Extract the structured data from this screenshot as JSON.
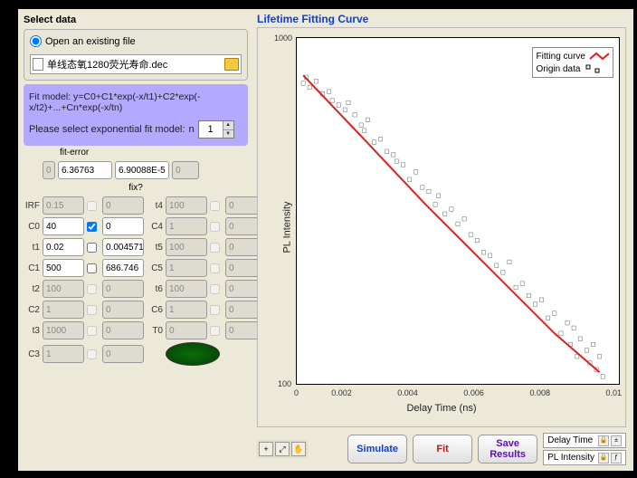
{
  "left": {
    "select_data_title": "Select data",
    "open_existing": "Open an existing file",
    "file_name": "单线态氧1280荧光寿命.dec",
    "model": {
      "formula": "Fit model: y=C0+C1*exp(-x/t1)+C2*exp(-x/t2)+...+Cn*exp(-x/tn)",
      "select_label": "Please select exponential fit model:",
      "n_label": "n",
      "n_value": "1"
    },
    "fit_error_label": "fit-error",
    "fix_label": "fix?",
    "error_row": {
      "f1": "0",
      "v1": "6.36763",
      "v2": "6.90088E-5",
      "f2": "0"
    },
    "params": {
      "IRF": {
        "v": "0.15",
        "r": "0",
        "lbl2": "t4",
        "v2": "100",
        "r2": "0"
      },
      "C0": {
        "v": "40",
        "r": "0",
        "lbl2": "C4",
        "v2": "1",
        "r2": "0",
        "enabled": true,
        "chk": true,
        "r_enabled": true
      },
      "t1": {
        "v": "0.02",
        "r": "0.0045712",
        "lbl2": "t5",
        "v2": "100",
        "r2": "0",
        "enabled": true,
        "r_enabled": true
      },
      "C1": {
        "v": "500",
        "r": "686.746",
        "lbl2": "C5",
        "v2": "1",
        "r2": "0",
        "enabled": true,
        "r_enabled": true
      },
      "t2": {
        "v": "100",
        "r": "0",
        "lbl2": "t6",
        "v2": "100",
        "r2": "0"
      },
      "C2": {
        "v": "1",
        "r": "0",
        "lbl2": "C6",
        "v2": "1",
        "r2": "0"
      },
      "t3": {
        "v": "1000",
        "r": "0",
        "lbl2": "T0",
        "v2": "0",
        "r2": "0"
      },
      "C3": {
        "v": "1",
        "r": "0"
      }
    }
  },
  "right": {
    "chart_title": "Lifetime Fitting Curve",
    "legend": {
      "fit": "Fitting curve",
      "origin": "Origin data"
    },
    "y_label": "PL Intensity",
    "x_label": "Delay Time (ns)",
    "y_ticks": {
      "top": "1000",
      "bottom": "100"
    },
    "x_ticks": [
      "0",
      "0.002",
      "0.004",
      "0.006",
      "0.008",
      "0.01"
    ],
    "chart": {
      "type": "line+scatter",
      "fit_line": {
        "color": "#e02020",
        "width": 2,
        "points": [
          [
            0.0002,
            780
          ],
          [
            0.002,
            520
          ],
          [
            0.004,
            330
          ],
          [
            0.006,
            215
          ],
          [
            0.008,
            140
          ],
          [
            0.0094,
            108
          ]
        ]
      },
      "scatter": {
        "color": "#000",
        "marker": "square-open",
        "size": 4,
        "points": [
          [
            0.0002,
            740
          ],
          [
            0.0003,
            770
          ],
          [
            0.0004,
            720
          ],
          [
            0.0006,
            750
          ],
          [
            0.0008,
            690
          ],
          [
            0.001,
            700
          ],
          [
            0.0011,
            660
          ],
          [
            0.0013,
            640
          ],
          [
            0.0015,
            620
          ],
          [
            0.0016,
            650
          ],
          [
            0.0018,
            600
          ],
          [
            0.002,
            560
          ],
          [
            0.0021,
            540
          ],
          [
            0.0022,
            580
          ],
          [
            0.0024,
            500
          ],
          [
            0.0026,
            510
          ],
          [
            0.0028,
            470
          ],
          [
            0.003,
            460
          ],
          [
            0.0031,
            440
          ],
          [
            0.0033,
            430
          ],
          [
            0.0035,
            390
          ],
          [
            0.0037,
            410
          ],
          [
            0.0039,
            370
          ],
          [
            0.0041,
            360
          ],
          [
            0.0043,
            330
          ],
          [
            0.0044,
            350
          ],
          [
            0.0046,
            310
          ],
          [
            0.0048,
            320
          ],
          [
            0.005,
            290
          ],
          [
            0.0052,
            300
          ],
          [
            0.0054,
            270
          ],
          [
            0.0056,
            260
          ],
          [
            0.0058,
            240
          ],
          [
            0.006,
            235
          ],
          [
            0.0062,
            220
          ],
          [
            0.0064,
            210
          ],
          [
            0.0066,
            225
          ],
          [
            0.0068,
            190
          ],
          [
            0.007,
            195
          ],
          [
            0.0072,
            180
          ],
          [
            0.0074,
            170
          ],
          [
            0.0076,
            175
          ],
          [
            0.0078,
            155
          ],
          [
            0.008,
            160
          ],
          [
            0.0082,
            140
          ],
          [
            0.0084,
            150
          ],
          [
            0.0085,
            130
          ],
          [
            0.0086,
            145
          ],
          [
            0.0087,
            120
          ],
          [
            0.0088,
            135
          ],
          [
            0.009,
            125
          ],
          [
            0.0091,
            115
          ],
          [
            0.0092,
            130
          ],
          [
            0.0093,
            110
          ],
          [
            0.0094,
            120
          ],
          [
            0.0095,
            105
          ]
        ]
      },
      "xlim": [
        0,
        0.01
      ],
      "ylim_log": [
        100,
        1000
      ],
      "bg": "#ffffff"
    },
    "buttons": {
      "simulate": "Simulate",
      "fit": "Fit",
      "save": "Save Results"
    },
    "axis_ctrl": {
      "x": "Delay Time",
      "y": "PL Intensity"
    }
  }
}
